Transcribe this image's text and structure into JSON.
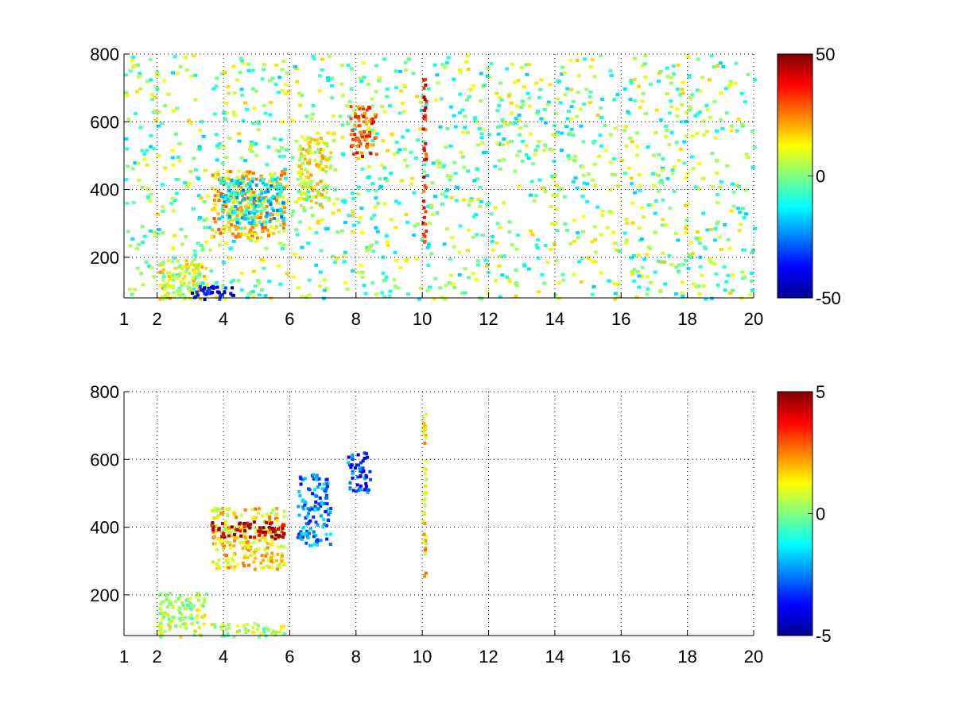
{
  "chart_data": [
    {
      "type": "heatmap",
      "title": "",
      "xlabel": "",
      "ylabel": "",
      "xlim": [
        1,
        20
      ],
      "ylim": [
        80,
        800
      ],
      "x_ticks": [
        1,
        2,
        4,
        6,
        8,
        10,
        12,
        14,
        16,
        18,
        20
      ],
      "y_ticks": [
        200,
        400,
        600,
        800
      ],
      "grid": true,
      "grid_style": "dotted",
      "colormap": "jet",
      "colorbar": {
        "range": [
          -50,
          50
        ],
        "ticks": [
          50,
          0,
          -50
        ]
      },
      "sparse_background": true,
      "features": [
        {
          "x": [
            3.6,
            5.8
          ],
          "y": [
            260,
            460
          ],
          "value": 18
        },
        {
          "x": [
            3.8,
            5.8
          ],
          "y": [
            300,
            440
          ],
          "value": -15
        },
        {
          "x": [
            6.2,
            7.2
          ],
          "y": [
            350,
            560
          ],
          "value": 12
        },
        {
          "x": [
            7.8,
            8.6
          ],
          "y": [
            500,
            650
          ],
          "value": 30
        },
        {
          "x": [
            2.0,
            3.5
          ],
          "y": [
            80,
            200
          ],
          "value": 10
        },
        {
          "x": [
            3.0,
            4.3
          ],
          "y": [
            80,
            120
          ],
          "value": -40
        },
        {
          "x": [
            9.98,
            10.08
          ],
          "y": [
            250,
            740
          ],
          "value": 35
        }
      ]
    },
    {
      "type": "heatmap",
      "title": "",
      "xlabel": "",
      "ylabel": "",
      "xlim": [
        1,
        20
      ],
      "ylim": [
        80,
        800
      ],
      "x_ticks": [
        1,
        2,
        4,
        6,
        8,
        10,
        12,
        14,
        16,
        18,
        20
      ],
      "y_ticks": [
        200,
        400,
        600,
        800
      ],
      "grid": true,
      "grid_style": "dotted",
      "colormap": "jet",
      "colorbar": {
        "range": [
          -5,
          5
        ],
        "ticks": [
          5,
          0,
          -5
        ]
      },
      "sparse_background": false,
      "features": [
        {
          "x": [
            3.6,
            5.8
          ],
          "y": [
            280,
            460
          ],
          "value": 1.5
        },
        {
          "x": [
            3.6,
            5.8
          ],
          "y": [
            370,
            420
          ],
          "value": 4.5
        },
        {
          "x": [
            6.2,
            7.2
          ],
          "y": [
            350,
            560
          ],
          "value": -2.5
        },
        {
          "x": [
            7.7,
            8.4
          ],
          "y": [
            500,
            630
          ],
          "value": -3
        },
        {
          "x": [
            2.0,
            3.5
          ],
          "y": [
            80,
            210
          ],
          "value": 0.5
        },
        {
          "x": [
            3.6,
            5.8
          ],
          "y": [
            80,
            120
          ],
          "value": 0.5
        },
        {
          "x": [
            9.98,
            10.08
          ],
          "y": [
            250,
            740
          ],
          "value": 1.5
        }
      ]
    }
  ]
}
